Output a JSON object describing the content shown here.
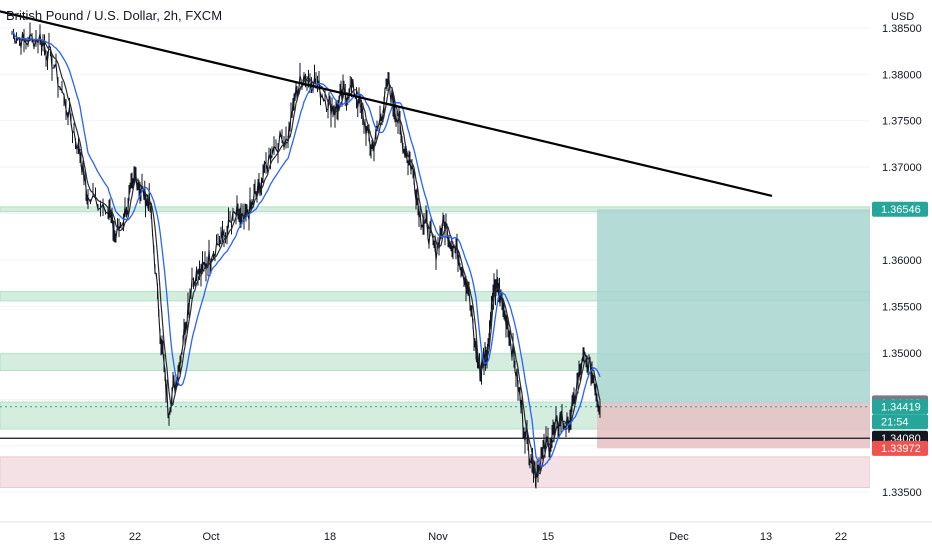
{
  "header": {
    "symbol_title": "British Pound / U.S. Dollar, 2h, FXCM"
  },
  "chart_data": {
    "type": "candlestick",
    "title": "British Pound / U.S. Dollar, 2h, FXCM",
    "currency": "USD",
    "ylim": [
      1.332,
      1.388
    ],
    "y_ticks": [
      1.385,
      1.38,
      1.375,
      1.37,
      1.365,
      1.36,
      1.355,
      1.35,
      1.345,
      1.34,
      1.335
    ],
    "y_tick_labels": [
      "1.38500",
      "1.38000",
      "1.37500",
      "1.37000",
      "",
      "1.36000",
      "1.35500",
      "1.35000",
      "",
      "",
      "1.33500"
    ],
    "x_ticks": [
      "13",
      "22",
      "Oct",
      "18",
      "Nov",
      "15",
      "Dec",
      "13",
      "22"
    ],
    "price_path": [
      [
        0,
        1.3845
      ],
      [
        0.03,
        1.3835
      ],
      [
        0.07,
        1.384
      ],
      [
        0.1,
        1.3815
      ],
      [
        0.14,
        1.376
      ],
      [
        0.17,
        1.3715
      ],
      [
        0.19,
        1.3665
      ],
      [
        0.24,
        1.366
      ],
      [
        0.26,
        1.3625
      ],
      [
        0.29,
        1.366
      ],
      [
        0.31,
        1.369
      ],
      [
        0.33,
        1.367
      ],
      [
        0.345,
        1.366
      ],
      [
        0.37,
        1.353
      ],
      [
        0.39,
        1.344
      ],
      [
        0.41,
        1.347
      ],
      [
        0.43,
        1.352
      ],
      [
        0.45,
        1.358
      ],
      [
        0.48,
        1.359
      ],
      [
        0.5,
        1.361
      ],
      [
        0.53,
        1.3625
      ],
      [
        0.56,
        1.365
      ],
      [
        0.58,
        1.364
      ],
      [
        0.6,
        1.366
      ],
      [
        0.62,
        1.368
      ],
      [
        0.65,
        1.372
      ],
      [
        0.69,
        1.3735
      ],
      [
        0.71,
        1.378
      ],
      [
        0.73,
        1.38
      ],
      [
        0.76,
        1.379
      ],
      [
        0.79,
        1.377
      ],
      [
        0.81,
        1.376
      ],
      [
        0.83,
        1.378
      ],
      [
        0.855,
        1.3785
      ],
      [
        0.88,
        1.375
      ],
      [
        0.9,
        1.372
      ],
      [
        0.92,
        1.375
      ],
      [
        0.94,
        1.379
      ],
      [
        0.96,
        1.376
      ],
      [
        0.98,
        1.372
      ],
      [
        1.0,
        1.37
      ],
      [
        1.02,
        1.365
      ],
      [
        1.04,
        1.363
      ],
      [
        1.06,
        1.361
      ],
      [
        1.08,
        1.364
      ],
      [
        1.1,
        1.362
      ],
      [
        1.12,
        1.36
      ],
      [
        1.14,
        1.357
      ],
      [
        1.16,
        1.35
      ],
      [
        1.17,
        1.348
      ],
      [
        1.18,
        1.3495
      ],
      [
        1.19,
        1.3505
      ],
      [
        1.2,
        1.3555
      ],
      [
        1.21,
        1.357
      ],
      [
        1.22,
        1.356
      ],
      [
        1.24,
        1.353
      ],
      [
        1.26,
        1.348
      ],
      [
        1.28,
        1.342
      ],
      [
        1.3,
        1.3385
      ],
      [
        1.31,
        1.337
      ],
      [
        1.33,
        1.3395
      ],
      [
        1.35,
        1.341
      ],
      [
        1.37,
        1.343
      ],
      [
        1.39,
        1.342
      ],
      [
        1.41,
        1.346
      ],
      [
        1.43,
        1.3495
      ],
      [
        1.45,
        1.348
      ],
      [
        1.47,
        1.3442
      ]
    ],
    "path_x_domain_note": "",
    "trendline": {
      "from": [
        -0.1,
        1.3875
      ],
      "to": [
        1.9,
        1.3669
      ]
    },
    "horizontal_line": 1.3408,
    "zones": [
      {
        "from": 1.36572,
        "to": 1.3652,
        "color": "#b2dfc4"
      },
      {
        "from": 1.3566,
        "to": 1.3556,
        "color": "#b2dfc4"
      },
      {
        "from": 1.3499,
        "to": 1.3481,
        "color": "#b2dfc4"
      },
      {
        "from": 1.3447,
        "to": 1.3418,
        "color": "#b2dfc4"
      },
      {
        "from": 1.3388,
        "to": 1.3355,
        "color": "#e9c9d1"
      }
    ],
    "position": {
      "entry": 1.34462,
      "target": 1.36546,
      "stop": 1.33972
    },
    "price_badges": [
      {
        "label": "1.36546",
        "price": 1.36546,
        "color": "#26a69a"
      },
      {
        "label": "1.34462",
        "price": 1.34462,
        "color": "#787b86"
      },
      {
        "label": "1.34419",
        "price": 1.34419,
        "color": "#26a69a"
      },
      {
        "label": "21:54",
        "price": 1.34419,
        "color": "#26a69a"
      },
      {
        "label": "1.34080",
        "price": 1.3408,
        "color": "#131722"
      },
      {
        "label": "1.33972",
        "price": 1.33972,
        "color": "#ef5350"
      }
    ],
    "colors": {
      "price": "#131722",
      "ma_fast": "#2a2e39",
      "ma_slow": "#2962ff",
      "target_zone": "#a8d5d0",
      "stop_zone": "#e6bfc3"
    }
  }
}
